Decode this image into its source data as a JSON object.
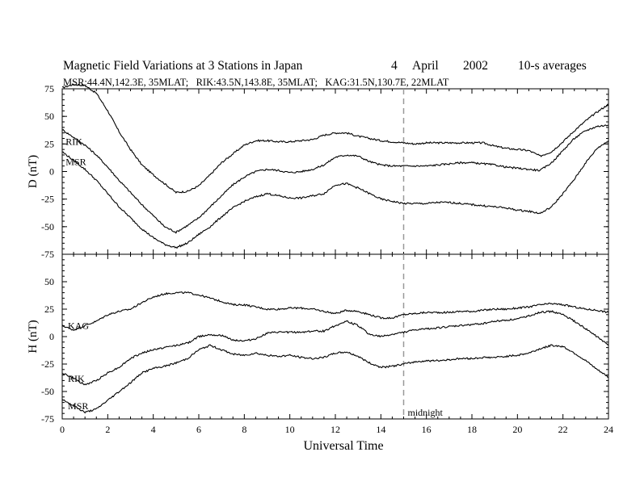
{
  "header": {
    "title": "Magnetic Field Variations at 3 Stations in Japan",
    "day": "4",
    "month": "April",
    "year": "2002",
    "averaging": "10-s averages",
    "stations_line": "MSR:44.4N,142.3E, 35MLAT;   RIK:43.5N,143.8E, 35MLAT;   KAG:31.5N,130.7E, 22MLAT"
  },
  "colors": {
    "trace": "#000000",
    "marker": "#999999",
    "background": "#ffffff"
  },
  "chart_data": [
    {
      "type": "line",
      "panel": "top",
      "ylabel": "D (nT)",
      "xlabel": "",
      "xlim": [
        0,
        24
      ],
      "ylim": [
        -75,
        75
      ],
      "yticks": [
        -75,
        -50,
        -25,
        0,
        25,
        50,
        75
      ],
      "series": [
        {
          "name": "",
          "x": [
            0,
            0.5,
            1,
            1.5,
            2,
            2.5,
            3,
            3.5,
            4,
            4.5,
            5,
            5.5,
            6,
            6.5,
            7,
            7.5,
            8,
            8.5,
            9,
            9.5,
            10,
            10.5,
            11,
            11.5,
            12,
            12.5,
            13,
            13.5,
            14,
            14.5,
            15,
            15.5,
            16,
            16.5,
            17,
            17.5,
            18,
            18.5,
            19,
            19.5,
            20,
            20.5,
            21,
            21.5,
            22,
            22.5,
            23,
            23.5,
            24
          ],
          "y": [
            76,
            79,
            78,
            71,
            55,
            36,
            20,
            6,
            -3,
            -11,
            -19,
            -18,
            -13,
            -3,
            8,
            16,
            24,
            28,
            28,
            27,
            27,
            28,
            29,
            33,
            35,
            35,
            32,
            30,
            28,
            27,
            26,
            25,
            26,
            26,
            26,
            26,
            26,
            26,
            23,
            21,
            20,
            19,
            14,
            18,
            27,
            37,
            46,
            54,
            61
          ]
        },
        {
          "name": "RIK",
          "x": [
            0,
            0.5,
            1,
            1.5,
            2,
            2.5,
            3,
            3.5,
            4,
            4.5,
            5,
            5.5,
            6,
            6.5,
            7,
            7.5,
            8,
            8.5,
            9,
            9.5,
            10,
            10.5,
            11,
            11.5,
            12,
            12.5,
            13,
            13.5,
            14,
            14.5,
            15,
            15.5,
            16,
            16.5,
            17,
            17.5,
            18,
            18.5,
            19,
            19.5,
            20,
            20.5,
            21,
            21.5,
            22,
            22.5,
            23,
            23.5,
            24
          ],
          "y": [
            38,
            31,
            24,
            15,
            4,
            -8,
            -19,
            -30,
            -40,
            -50,
            -55,
            -49,
            -42,
            -32,
            -22,
            -12,
            -5,
            0,
            2,
            1,
            -1,
            0,
            2,
            6,
            13,
            15,
            14,
            9,
            6,
            5,
            5,
            5,
            5,
            6,
            7,
            8,
            8,
            7,
            6,
            4,
            3,
            2,
            1,
            8,
            19,
            30,
            37,
            41,
            42
          ]
        },
        {
          "name": "MSR",
          "x": [
            0,
            0.5,
            1,
            1.5,
            2,
            2.5,
            3,
            3.5,
            4,
            4.5,
            5,
            5.5,
            6,
            6.5,
            7,
            7.5,
            8,
            8.5,
            9,
            9.5,
            10,
            10.5,
            11,
            11.5,
            12,
            12.5,
            13,
            13.5,
            14,
            14.5,
            15,
            15.5,
            16,
            16.5,
            17,
            17.5,
            18,
            18.5,
            19,
            19.5,
            20,
            20.5,
            21,
            21.5,
            22,
            22.5,
            23,
            23.5,
            24
          ],
          "y": [
            18,
            10,
            2,
            -8,
            -20,
            -32,
            -42,
            -52,
            -60,
            -66,
            -69,
            -65,
            -57,
            -50,
            -41,
            -33,
            -27,
            -23,
            -20,
            -22,
            -24,
            -24,
            -22,
            -20,
            -12,
            -11,
            -15,
            -20,
            -25,
            -27,
            -29,
            -29,
            -29,
            -28,
            -28,
            -29,
            -30,
            -31,
            -32,
            -33,
            -35,
            -36,
            -38,
            -32,
            -20,
            -7,
            8,
            21,
            28
          ]
        }
      ],
      "annotations": [
        "RIK",
        "MSR"
      ]
    },
    {
      "type": "line",
      "panel": "bottom",
      "ylabel": "H (nT)",
      "xlabel": "Universal Time",
      "xlim": [
        0,
        24
      ],
      "ylim": [
        -75,
        75
      ],
      "yticks": [
        -75,
        -50,
        -25,
        0,
        25,
        50
      ],
      "xticks": [
        0,
        2,
        4,
        6,
        8,
        10,
        12,
        14,
        16,
        18,
        20,
        22,
        24
      ],
      "series": [
        {
          "name": "KAG",
          "x": [
            0,
            0.5,
            1,
            1.5,
            2,
            2.5,
            3,
            3.5,
            4,
            4.5,
            5,
            5.5,
            6,
            6.5,
            7,
            7.5,
            8,
            8.5,
            9,
            9.5,
            10,
            10.5,
            11,
            11.5,
            12,
            12.5,
            13,
            13.5,
            14,
            14.5,
            15,
            15.5,
            16,
            16.5,
            17,
            17.5,
            18,
            18.5,
            19,
            19.5,
            20,
            20.5,
            21,
            21.5,
            22,
            22.5,
            23,
            23.5,
            24
          ],
          "y": [
            10,
            6,
            10,
            14,
            20,
            23,
            25,
            31,
            36,
            39,
            40,
            40,
            38,
            35,
            32,
            29,
            29,
            27,
            25,
            25,
            26,
            26,
            25,
            23,
            21,
            24,
            23,
            20,
            17,
            17,
            20,
            21,
            22,
            22,
            22,
            23,
            23,
            24,
            25,
            25,
            26,
            27,
            29,
            30,
            29,
            27,
            25,
            24,
            22
          ]
        },
        {
          "name": "RIK",
          "x": [
            0,
            0.5,
            1,
            1.5,
            2,
            2.5,
            3,
            3.5,
            4,
            4.5,
            5,
            5.5,
            6,
            6.5,
            7,
            7.5,
            8,
            8.5,
            9,
            9.5,
            10,
            10.5,
            11,
            11.5,
            12,
            12.5,
            13,
            13.5,
            14,
            14.5,
            15,
            15.5,
            16,
            16.5,
            17,
            17.5,
            18,
            18.5,
            19,
            19.5,
            20,
            20.5,
            21,
            21.5,
            22,
            22.5,
            23,
            23.5,
            24
          ],
          "y": [
            -33,
            -38,
            -44,
            -40,
            -33,
            -28,
            -20,
            -15,
            -12,
            -10,
            -8,
            -6,
            0,
            2,
            1,
            -3,
            -4,
            -2,
            3,
            4,
            4,
            4,
            5,
            5,
            10,
            14,
            10,
            2,
            0,
            2,
            4,
            6,
            7,
            8,
            9,
            10,
            11,
            12,
            14,
            15,
            16,
            19,
            22,
            23,
            20,
            14,
            7,
            0,
            -8
          ]
        },
        {
          "name": "MSR",
          "x": [
            0,
            0.5,
            1,
            1.5,
            2,
            2.5,
            3,
            3.5,
            4,
            4.5,
            5,
            5.5,
            6,
            6.5,
            7,
            7.5,
            8,
            8.5,
            9,
            9.5,
            10,
            10.5,
            11,
            11.5,
            12,
            12.5,
            13,
            13.5,
            14,
            14.5,
            15,
            15.5,
            16,
            16.5,
            17,
            17.5,
            18,
            18.5,
            19,
            19.5,
            20,
            20.5,
            21,
            21.5,
            22,
            22.5,
            23,
            23.5,
            24
          ],
          "y": [
            -57,
            -63,
            -69,
            -66,
            -58,
            -50,
            -42,
            -33,
            -29,
            -27,
            -24,
            -20,
            -12,
            -8,
            -12,
            -16,
            -17,
            -15,
            -17,
            -18,
            -17,
            -19,
            -20,
            -19,
            -15,
            -14,
            -18,
            -24,
            -28,
            -27,
            -25,
            -23,
            -22,
            -22,
            -21,
            -20,
            -20,
            -19,
            -19,
            -18,
            -17,
            -15,
            -11,
            -8,
            -9,
            -15,
            -22,
            -30,
            -37
          ]
        }
      ],
      "annotations": [
        "KAG",
        "RIK",
        "MSR",
        "midnight"
      ],
      "marker_line": {
        "x": 15,
        "label": "midnight"
      }
    }
  ]
}
